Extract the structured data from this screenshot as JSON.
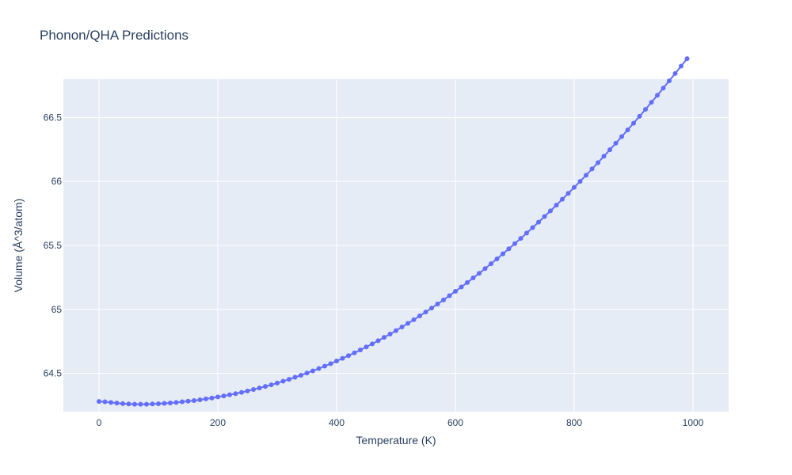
{
  "chart_data": {
    "type": "line",
    "title": "Phonon/QHA Predictions",
    "xlabel": "Temperature (K)",
    "ylabel": "Volume (Å^3/atom)",
    "xlim": [
      -60,
      1060
    ],
    "ylim": [
      64.2,
      66.8
    ],
    "xticks": [
      0,
      200,
      400,
      600,
      800,
      1000
    ],
    "xtick_labels": [
      "0",
      "200",
      "400",
      "600",
      "800",
      "1000"
    ],
    "yticks": [
      64.5,
      65,
      65.5,
      66,
      66.5
    ],
    "ytick_labels": [
      "64.5",
      "65",
      "65.5",
      "66",
      "66.5"
    ],
    "grid": true,
    "markers": true,
    "colors": {
      "series": "#636efa",
      "plot_bg": "#e5ecf6",
      "text": "#2a3f5f"
    },
    "series": [
      {
        "x": [
          0,
          10,
          20,
          30,
          40,
          50,
          60,
          70,
          80,
          90,
          100,
          110,
          120,
          130,
          140,
          150,
          160,
          170,
          180,
          190,
          200,
          210,
          220,
          230,
          240,
          250,
          260,
          270,
          280,
          290,
          300,
          310,
          320,
          330,
          340,
          350,
          360,
          370,
          380,
          390,
          400,
          410,
          420,
          430,
          440,
          450,
          460,
          470,
          480,
          490,
          500,
          510,
          520,
          530,
          540,
          550,
          560,
          570,
          580,
          590,
          600,
          610,
          620,
          630,
          640,
          650,
          660,
          670,
          680,
          690,
          700,
          710,
          720,
          730,
          740,
          750,
          760,
          770,
          780,
          790,
          800,
          810,
          820,
          830,
          840,
          850,
          860,
          870,
          880,
          890,
          900,
          910,
          920,
          930,
          940,
          950,
          960,
          970,
          980,
          990
        ],
        "y": [
          64.28,
          64.277,
          64.272,
          64.267,
          64.263,
          64.26,
          64.258,
          64.258,
          64.258,
          64.26,
          64.262,
          64.265,
          64.268,
          64.272,
          64.277,
          64.282,
          64.287,
          64.293,
          64.3,
          64.307,
          64.315,
          64.323,
          64.332,
          64.341,
          64.351,
          64.362,
          64.373,
          64.385,
          64.397,
          64.41,
          64.424,
          64.438,
          64.453,
          64.469,
          64.485,
          64.502,
          64.519,
          64.537,
          64.556,
          64.575,
          64.596,
          64.617,
          64.638,
          64.66,
          64.683,
          64.706,
          64.73,
          64.755,
          64.781,
          64.807,
          64.834,
          64.862,
          64.89,
          64.919,
          64.949,
          64.979,
          65.01,
          65.042,
          65.074,
          65.107,
          65.141,
          65.175,
          65.21,
          65.246,
          65.282,
          65.319,
          65.357,
          65.395,
          65.434,
          65.474,
          65.514,
          65.555,
          65.597,
          65.639,
          65.682,
          65.726,
          65.77,
          65.815,
          65.861,
          65.907,
          65.954,
          66.001,
          66.049,
          66.098,
          66.147,
          66.197,
          66.248,
          66.299,
          66.351,
          66.403,
          66.456,
          66.51,
          66.564,
          66.619,
          66.674,
          66.73,
          66.787,
          66.844,
          66.902,
          66.96
        ]
      }
    ]
  }
}
